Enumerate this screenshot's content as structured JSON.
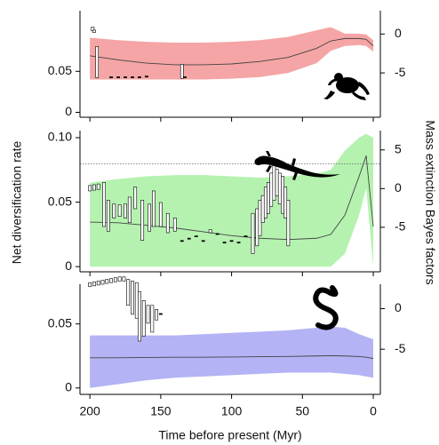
{
  "chart_data": [
    {
      "type": "line",
      "x": [
        200,
        180,
        160,
        140,
        120,
        100,
        80,
        60,
        40,
        30,
        20,
        10,
        5,
        0
      ],
      "series": [
        {
          "color": "#f5a5a5",
          "values": [
            0.069,
            0.064,
            0.06,
            0.058,
            0.058,
            0.059,
            0.062,
            0.067,
            0.078,
            0.087,
            0.09,
            0.09,
            0.089,
            0.081
          ],
          "lower": [
            0.04,
            0.04,
            0.04,
            0.04,
            0.04,
            0.041,
            0.043,
            0.048,
            0.06,
            0.075,
            0.081,
            0.082,
            0.081,
            0.074
          ],
          "upper": [
            0.091,
            0.088,
            0.086,
            0.085,
            0.085,
            0.086,
            0.088,
            0.092,
            0.1,
            0.104,
            0.096,
            0.096,
            0.095,
            0.088
          ]
        }
      ],
      "bf": {
        "x": [
          198,
          197,
          195,
          185,
          180,
          175,
          170,
          165,
          160,
          135,
          133
        ],
        "low": [
          0.4,
          0.2,
          -5.6,
          -5.5,
          -5.5,
          -5.5,
          -5.5,
          -5.5,
          -5.4,
          -5.7,
          -5.5
        ],
        "high": [
          0.9,
          0.5,
          -1.6,
          -5.5,
          -5.5,
          -5.5,
          -5.5,
          -5.5,
          -5.4,
          -3.9,
          -5.5
        ]
      },
      "xlim": [
        207,
        -5
      ],
      "ylim": [
        -0.006,
        0.124
      ],
      "yticks": [
        0,
        0.05
      ],
      "y2lim": [
        -10.7,
        3
      ],
      "y2ticks": [
        -5,
        0
      ]
    },
    {
      "type": "line",
      "ylabel": "Net diversification rate",
      "y2label": "Mass extinction Bayes factors",
      "x": [
        200,
        180,
        160,
        140,
        120,
        100,
        80,
        60,
        40,
        30,
        20,
        10,
        5,
        0
      ],
      "series": [
        {
          "color": "#b5f2b0",
          "values": [
            0.0345,
            0.034,
            0.032,
            0.03,
            0.027,
            0.024,
            0.022,
            0.021,
            0.022,
            0.025,
            0.04,
            0.07,
            0.086,
            0.031
          ],
          "lower": [
            0,
            0,
            0,
            0,
            0,
            0,
            0,
            0,
            0,
            0,
            0.01,
            0.04,
            0.061,
            0
          ],
          "upper": [
            0.065,
            0.068,
            0.07,
            0.071,
            0.071,
            0.07,
            0.069,
            0.07,
            0.072,
            0.075,
            0.09,
            0.1,
            0.103,
            0.1
          ]
        }
      ],
      "bf": {
        "x": [
          200,
          197,
          194,
          190,
          187,
          183,
          179,
          175,
          172,
          168,
          163,
          158,
          155,
          150,
          145,
          140,
          135,
          130,
          125,
          120,
          115,
          110,
          105,
          100,
          95,
          90,
          85,
          82,
          80,
          78,
          76,
          74,
          72,
          70,
          68,
          66,
          64,
          62,
          60
        ],
        "low": [
          -0.3,
          -0.2,
          -0.1,
          -4.9,
          -5.5,
          -3.8,
          -3.6,
          -3.8,
          -4.4,
          -2.6,
          -6.7,
          -5.5,
          -4.9,
          -4.9,
          -5.7,
          -5.5,
          -6.7,
          -6.4,
          -6.1,
          -6.7,
          -5.7,
          -5.8,
          -6.9,
          -6.7,
          -6.9,
          -6.1,
          -8.4,
          -7.4,
          -6.1,
          -4.4,
          -3.8,
          -3.2,
          -2.3,
          -1.5,
          -0.9,
          -2.0,
          -3.2,
          -3.8,
          -7.4
        ],
        "high": [
          0.4,
          0.5,
          0.6,
          0.8,
          -1.5,
          -2.0,
          -2.1,
          -2.0,
          -1.1,
          0.2,
          -1.5,
          -2.0,
          -0.3,
          -1.8,
          -3.2,
          -3.8,
          -6.7,
          -6.4,
          -6.1,
          -6.7,
          -5.3,
          -5.8,
          -6.9,
          -6.7,
          -6.9,
          -6.1,
          -3.2,
          -2.6,
          -1.5,
          -0.9,
          0.2,
          0.8,
          2.0,
          3.1,
          2.5,
          2.0,
          1.6,
          0.2,
          -1.5
        ]
      },
      "threshold": 3.2,
      "xlim": [
        207,
        -5
      ],
      "ylim": [
        -0.004,
        0.1055
      ],
      "yticks": [
        0,
        0.05,
        {
          "value": 0.1,
          "label": "0.10"
        }
      ],
      "y2lim": [
        -10.75,
        7.5
      ],
      "y2ticks": [
        -5,
        0,
        5
      ]
    },
    {
      "type": "line",
      "xlabel": "Time before present (Myr)",
      "x": [
        200,
        180,
        160,
        140,
        120,
        100,
        80,
        60,
        40,
        30,
        20,
        10,
        5,
        0
      ],
      "series": [
        {
          "color": "#b3b3f5",
          "values": [
            0.0236,
            0.0236,
            0.0238,
            0.024,
            0.024,
            0.0242,
            0.0244,
            0.0246,
            0.025,
            0.0252,
            0.025,
            0.0245,
            0.024,
            0.023
          ],
          "lower": [
            0,
            0.003,
            0.006,
            0.008,
            0.009,
            0.01,
            0.011,
            0.012,
            0.012,
            0.012,
            0.011,
            0.01,
            0.009,
            0.008
          ],
          "upper": [
            0.041,
            0.041,
            0.041,
            0.041,
            0.042,
            0.043,
            0.044,
            0.045,
            0.047,
            0.048,
            0.047,
            0.042,
            0.04,
            0.038
          ]
        }
      ],
      "bf": {
        "x": [
          200,
          197,
          194,
          191,
          188,
          185,
          182,
          179,
          176,
          173,
          170,
          167,
          165,
          162,
          159,
          156,
          153,
          150
        ],
        "low": [
          2.7,
          2.8,
          2.9,
          3.0,
          3.1,
          3.2,
          3.3,
          3.4,
          3.4,
          0.4,
          -0.7,
          -1.2,
          -4.0,
          -3.4,
          -1.8,
          -2.9,
          -1.4,
          -0.6
        ],
        "high": [
          3.2,
          3.3,
          3.4,
          3.5,
          3.6,
          3.7,
          3.8,
          3.9,
          3.9,
          3.6,
          3.4,
          3.2,
          2.1,
          1.0,
          0.4,
          0.4,
          -0.1,
          -0.6
        ]
      },
      "xlim": [
        207,
        -5
      ],
      "ylim": [
        -0.005,
        0.081
      ],
      "yticks": [
        0,
        0.05
      ],
      "y2lim": [
        -10.56,
        3
      ],
      "y2ticks": [
        -5,
        0
      ],
      "xticks": [
        200,
        150,
        100,
        50,
        0
      ]
    }
  ]
}
